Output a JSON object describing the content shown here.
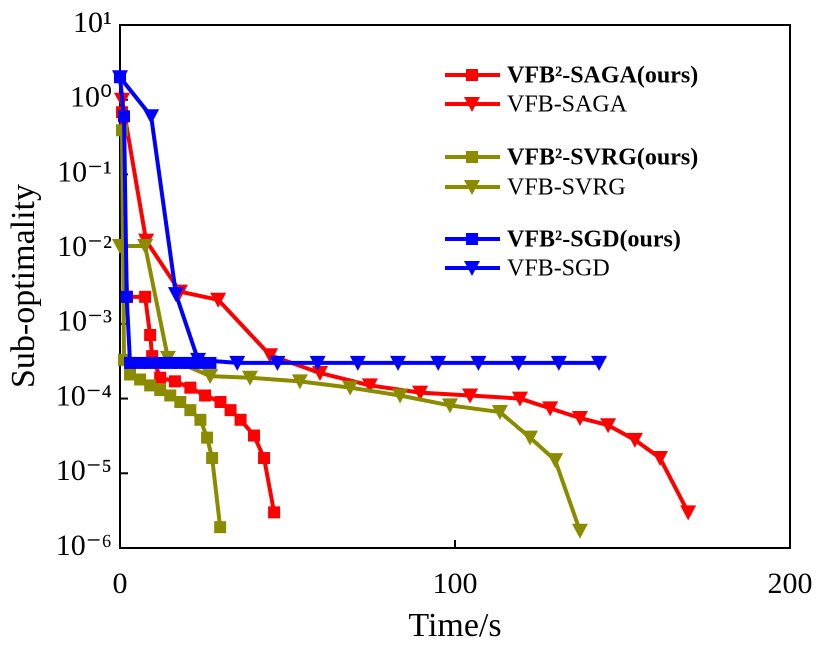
{
  "chart_data": {
    "type": "line",
    "xlabel": "Time/s",
    "ylabel": "Sub-optimality",
    "xlim": [
      0,
      200
    ],
    "xticks": [
      0,
      100,
      200
    ],
    "ylim": [
      1e-06,
      10
    ],
    "ylog": true,
    "yticks": [
      {
        "value": 10,
        "label": "10¹"
      },
      {
        "value": 1,
        "label": "10⁰"
      },
      {
        "value": 0.1,
        "label": "10⁻¹"
      },
      {
        "value": 0.01,
        "label": "10⁻²"
      },
      {
        "value": 0.001,
        "label": "10⁻³"
      },
      {
        "value": 0.0001,
        "label": "10⁻⁴"
      },
      {
        "value": 1e-05,
        "label": "10⁻⁵"
      },
      {
        "value": 1e-06,
        "label": "10⁻⁶"
      }
    ],
    "legend": "upper right",
    "series": [
      {
        "name": "VFB²-SAGA(ours)",
        "color": "#ff0000",
        "marker": "square",
        "bold": true,
        "x": [
          0.6,
          2.1,
          7.5,
          9,
          9.6,
          12,
          16.4,
          21,
          25.4,
          30,
          33,
          36,
          40,
          43,
          46
        ],
        "values": [
          0.68,
          0.0023,
          0.0023,
          0.00071,
          0.00037,
          0.00019,
          0.00017,
          0.00014,
          0.00011,
          9e-05,
          7e-05,
          5.2e-05,
          3.2e-05,
          1.6e-05,
          3e-06
        ]
      },
      {
        "name": "VFB-SAGA",
        "color": "#ff0000",
        "marker": "triangle",
        "bold": false,
        "x": [
          0.6,
          7.8,
          17.9,
          29.3,
          44.8,
          59.7,
          74.6,
          89.6,
          104.5,
          119.4,
          128.4,
          137.3,
          145.7,
          153.7,
          161.2,
          169.6
        ],
        "values": [
          1.0,
          0.013,
          0.0027,
          0.0021,
          0.00038,
          0.00022,
          0.00015,
          0.00012,
          0.00011,
          0.0001,
          7.4e-05,
          5.5e-05,
          4.4e-05,
          2.8e-05,
          1.6e-05,
          3e-06
        ]
      },
      {
        "name": "VFB²-SVRG(ours)",
        "color": "#8b8b00",
        "marker": "square",
        "bold": true,
        "x": [
          0.6,
          1.2,
          3,
          6,
          9,
          12,
          15,
          18,
          21,
          24,
          26,
          27.5,
          29.9
        ],
        "values": [
          0.39,
          0.00033,
          0.00021,
          0.00018,
          0.00015,
          0.00013,
          0.00011,
          9e-05,
          7e-05,
          5.2e-05,
          3e-05,
          1.6e-05,
          1.9e-06
        ]
      },
      {
        "name": "VFB-SVRG",
        "color": "#8b8b00",
        "marker": "triangle",
        "bold": false,
        "x": [
          0,
          7.5,
          14.3,
          26.9,
          38.8,
          53.7,
          68.7,
          83.6,
          98.5,
          113.4,
          122.4,
          129.9,
          137.3
        ],
        "values": [
          0.011,
          0.011,
          0.00035,
          0.0002,
          0.00019,
          0.00017,
          0.00014,
          0.00011,
          8.1e-05,
          6.6e-05,
          3e-05,
          1.5e-05,
          1.7e-06
        ]
      },
      {
        "name": "VFB²-SGD(ours)",
        "color": "#0000ff",
        "marker": "square",
        "bold": true,
        "x": [
          0,
          1.2,
          2,
          3,
          6,
          9,
          12,
          15,
          18,
          21,
          24,
          27
        ],
        "values": [
          2.0,
          0.6,
          0.0023,
          0.0003,
          0.0003,
          0.0003,
          0.0003,
          0.0003,
          0.0003,
          0.0003,
          0.0003,
          0.0003
        ]
      },
      {
        "name": "VFB-SGD",
        "color": "#0000ff",
        "marker": "triangle",
        "bold": false,
        "x": [
          0,
          9.3,
          16.7,
          23.3,
          35,
          47,
          59,
          71,
          83,
          95,
          107,
          119,
          131,
          143
        ],
        "values": [
          2.0,
          0.6,
          0.0025,
          0.00033,
          0.0003,
          0.0003,
          0.0003,
          0.0003,
          0.0003,
          0.0003,
          0.0003,
          0.0003,
          0.0003,
          0.0003
        ]
      }
    ]
  }
}
